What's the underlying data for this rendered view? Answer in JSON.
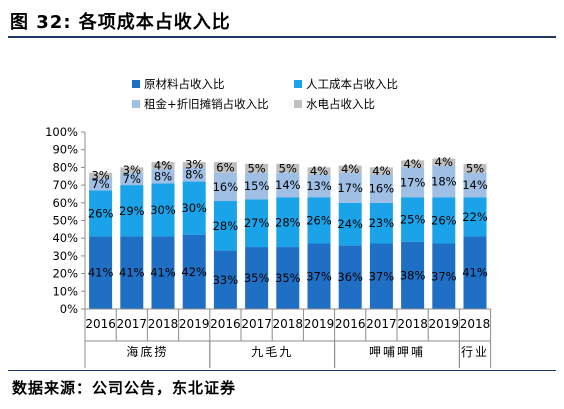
{
  "figure": {
    "title": "图 32: 各项成本占收入比",
    "source": "数据来源：公司公告，东北证券"
  },
  "colors": {
    "raw_material": "#1f6fc4",
    "labor": "#1aa3e8",
    "rent_depreciation": "#9fbfe5",
    "utilities": "#bfbfbf"
  },
  "chart_data": {
    "type": "bar",
    "stacked": true,
    "ylim": [
      0,
      100
    ],
    "y_ticks": [
      "0%",
      "10%",
      "20%",
      "30%",
      "40%",
      "50%",
      "60%",
      "70%",
      "80%",
      "90%",
      "100%"
    ],
    "legend_position": "top",
    "grid": false,
    "categories": [
      "2016",
      "2017",
      "2018",
      "2019",
      "2016",
      "2017",
      "2018",
      "2019",
      "2016",
      "2017",
      "2018",
      "2019",
      "2018"
    ],
    "groups": [
      {
        "label": "海底捞",
        "start": 0,
        "count": 4
      },
      {
        "label": "九毛九",
        "start": 4,
        "count": 4
      },
      {
        "label": "呷哺呷哺",
        "start": 8,
        "count": 4
      },
      {
        "label": "行业",
        "start": 12,
        "count": 1
      }
    ],
    "series": [
      {
        "name": "原材料占收入比",
        "color_key": "raw_material",
        "values": [
          41,
          41,
          41,
          42,
          33,
          35,
          35,
          37,
          36,
          37,
          38,
          37,
          41
        ],
        "labels": [
          "41%",
          "41%",
          "41%",
          "42%",
          "33%",
          "35%",
          "35%",
          "37%",
          "36%",
          "37%",
          "38%",
          "37%",
          "41%"
        ]
      },
      {
        "name": "人工成本占收入比",
        "color_key": "labor",
        "values": [
          26,
          29,
          30,
          30,
          28,
          27,
          28,
          26,
          24,
          23,
          25,
          26,
          22
        ],
        "labels": [
          "26%",
          "29%",
          "30%",
          "30%",
          "28%",
          "27%",
          "28%",
          "26%",
          "24%",
          "23%",
          "25%",
          "26%",
          "22%"
        ]
      },
      {
        "name": "租金+折旧摊销占收入比",
        "color_key": "rent_depreciation",
        "values": [
          7,
          7,
          8,
          8,
          16,
          15,
          14,
          13,
          17,
          16,
          17,
          18,
          14
        ],
        "labels": [
          "7%",
          "7%",
          "8%",
          "8%",
          "16%",
          "15%",
          "14%",
          "13%",
          "17%",
          "16%",
          "17%",
          "18%",
          "14%"
        ]
      },
      {
        "name": "水电占收入比",
        "color_key": "utilities",
        "values": [
          3,
          3,
          4,
          3,
          6,
          5,
          5,
          4,
          4,
          4,
          4,
          4,
          5
        ],
        "labels": [
          "3%",
          "3%",
          "4%",
          "3%",
          "6%",
          "5%",
          "5%",
          "4%",
          "4%",
          "4%",
          "4%",
          "4%",
          "5%"
        ]
      }
    ]
  }
}
